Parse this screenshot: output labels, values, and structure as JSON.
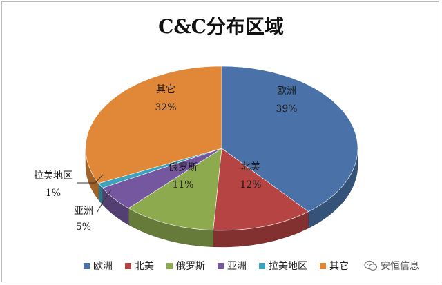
{
  "chart_data": {
    "type": "pie",
    "title": "C&C分布区域",
    "slices": [
      {
        "label": "欧洲",
        "value": 39,
        "display": "39%",
        "color": "#4a72a8"
      },
      {
        "label": "北美",
        "value": 12,
        "display": "12%",
        "color": "#b54443"
      },
      {
        "label": "俄罗斯",
        "value": 11,
        "display": "11%",
        "color": "#8daa4f"
      },
      {
        "label": "亚洲",
        "value": 5,
        "display": "5%",
        "color": "#7557a0"
      },
      {
        "label": "拉美地区",
        "value": 1,
        "display": "1%",
        "color": "#3ea3bd"
      },
      {
        "label": "其它",
        "value": 32,
        "display": "32%",
        "color": "#e08838"
      }
    ],
    "legend_position": "bottom",
    "style": "3d-pie"
  },
  "watermark": {
    "text": "安恒信息",
    "icon": "wechat-icon"
  }
}
